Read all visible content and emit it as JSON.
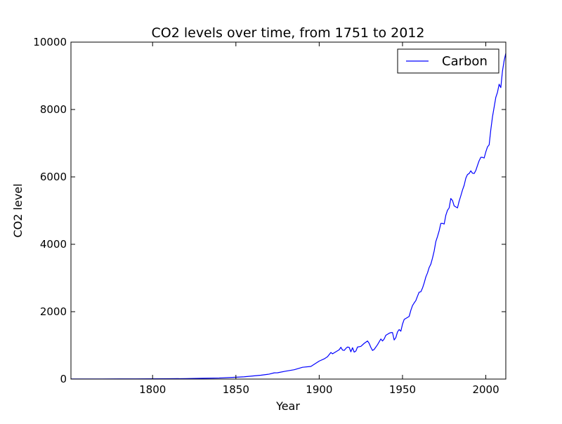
{
  "chart_data": {
    "type": "line",
    "title": "CO2 levels over time, from 1751 to 2012",
    "xlabel": "Year",
    "ylabel": "CO2 level",
    "xlim": [
      1751,
      2012
    ],
    "ylim": [
      0,
      10000
    ],
    "x_ticks": [
      "1800",
      "1850",
      "1900",
      "1950",
      "2000"
    ],
    "y_ticks": [
      "0",
      "2000",
      "4000",
      "6000",
      "8000",
      "10000"
    ],
    "grid": false,
    "legend_position": "top-right",
    "series": [
      {
        "name": "Carbon",
        "color": "#0000ff",
        "points": [
          [
            1751,
            3
          ],
          [
            1760,
            3
          ],
          [
            1770,
            4
          ],
          [
            1780,
            5
          ],
          [
            1790,
            6
          ],
          [
            1800,
            8
          ],
          [
            1810,
            10
          ],
          [
            1820,
            14
          ],
          [
            1830,
            24
          ],
          [
            1840,
            33
          ],
          [
            1850,
            54
          ],
          [
            1855,
            68
          ],
          [
            1860,
            91
          ],
          [
            1865,
            115
          ],
          [
            1870,
            147
          ],
          [
            1873,
            185
          ],
          [
            1875,
            188
          ],
          [
            1880,
            236
          ],
          [
            1885,
            277
          ],
          [
            1890,
            350
          ],
          [
            1895,
            375
          ],
          [
            1900,
            534
          ],
          [
            1903,
            600
          ],
          [
            1905,
            663
          ],
          [
            1907,
            790
          ],
          [
            1908,
            750
          ],
          [
            1910,
            810
          ],
          [
            1912,
            870
          ],
          [
            1913,
            943
          ],
          [
            1914,
            860
          ],
          [
            1915,
            850
          ],
          [
            1916,
            910
          ],
          [
            1917,
            950
          ],
          [
            1918,
            940
          ],
          [
            1919,
            810
          ],
          [
            1920,
            930
          ],
          [
            1921,
            800
          ],
          [
            1922,
            830
          ],
          [
            1923,
            950
          ],
          [
            1925,
            970
          ],
          [
            1927,
            1060
          ],
          [
            1929,
            1130
          ],
          [
            1930,
            1060
          ],
          [
            1931,
            940
          ],
          [
            1932,
            850
          ],
          [
            1933,
            880
          ],
          [
            1935,
            1020
          ],
          [
            1937,
            1190
          ],
          [
            1938,
            1130
          ],
          [
            1939,
            1190
          ],
          [
            1940,
            1300
          ],
          [
            1942,
            1360
          ],
          [
            1943,
            1380
          ],
          [
            1944,
            1380
          ],
          [
            1945,
            1160
          ],
          [
            1946,
            1230
          ],
          [
            1947,
            1400
          ],
          [
            1948,
            1470
          ],
          [
            1949,
            1420
          ],
          [
            1950,
            1630
          ],
          [
            1951,
            1770
          ],
          [
            1952,
            1800
          ],
          [
            1954,
            1860
          ],
          [
            1955,
            2040
          ],
          [
            1956,
            2180
          ],
          [
            1957,
            2260
          ],
          [
            1958,
            2330
          ],
          [
            1959,
            2460
          ],
          [
            1960,
            2580
          ],
          [
            1961,
            2590
          ],
          [
            1962,
            2700
          ],
          [
            1963,
            2850
          ],
          [
            1964,
            3030
          ],
          [
            1965,
            3150
          ],
          [
            1966,
            3310
          ],
          [
            1967,
            3410
          ],
          [
            1968,
            3590
          ],
          [
            1969,
            3800
          ],
          [
            1970,
            4080
          ],
          [
            1971,
            4230
          ],
          [
            1972,
            4400
          ],
          [
            1973,
            4620
          ],
          [
            1974,
            4620
          ],
          [
            1975,
            4600
          ],
          [
            1976,
            4860
          ],
          [
            1977,
            5010
          ],
          [
            1978,
            5080
          ],
          [
            1979,
            5360
          ],
          [
            1980,
            5300
          ],
          [
            1981,
            5140
          ],
          [
            1982,
            5110
          ],
          [
            1983,
            5080
          ],
          [
            1984,
            5280
          ],
          [
            1985,
            5440
          ],
          [
            1986,
            5610
          ],
          [
            1987,
            5750
          ],
          [
            1988,
            5960
          ],
          [
            1989,
            6070
          ],
          [
            1990,
            6100
          ],
          [
            1991,
            6180
          ],
          [
            1992,
            6110
          ],
          [
            1993,
            6100
          ],
          [
            1994,
            6190
          ],
          [
            1995,
            6340
          ],
          [
            1996,
            6480
          ],
          [
            1997,
            6580
          ],
          [
            1998,
            6580
          ],
          [
            1999,
            6560
          ],
          [
            2000,
            6740
          ],
          [
            2001,
            6890
          ],
          [
            2002,
            6950
          ],
          [
            2003,
            7400
          ],
          [
            2004,
            7780
          ],
          [
            2005,
            8070
          ],
          [
            2006,
            8360
          ],
          [
            2007,
            8510
          ],
          [
            2008,
            8750
          ],
          [
            2009,
            8650
          ],
          [
            2010,
            9140
          ],
          [
            2011,
            9450
          ],
          [
            2012,
            9670
          ]
        ]
      }
    ]
  }
}
